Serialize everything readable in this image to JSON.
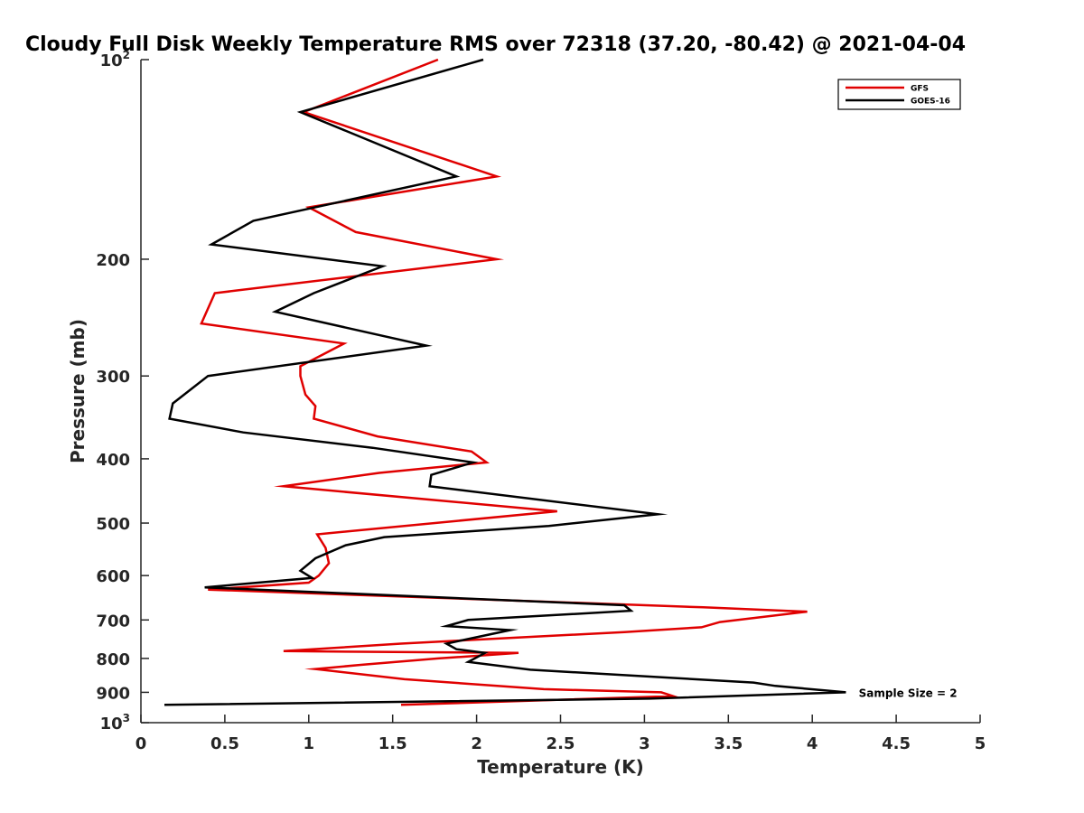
{
  "chart_data": {
    "type": "line",
    "title": "Cloudy Full Disk Weekly Temperature RMS over 72318 (37.20, -80.42) @ 2021-04-04",
    "xlabel": "Temperature (K)",
    "ylabel": "Pressure (mb)",
    "xlim": [
      0,
      5
    ],
    "ylim": [
      100,
      1000
    ],
    "y_scale": "log",
    "y_reversed": true,
    "grid": false,
    "legend_position": "top-right",
    "x_ticks": [
      "0",
      "0.5",
      "1",
      "1.5",
      "2",
      "2.5",
      "3",
      "3.5",
      "4",
      "4.5",
      "5"
    ],
    "x_tick_values": [
      0,
      0.5,
      1,
      1.5,
      2,
      2.5,
      3,
      3.5,
      4,
      4.5,
      5
    ],
    "y_ticks": [
      {
        "value": 100,
        "base": "10",
        "exp": "2"
      },
      {
        "value": 200,
        "label": "200"
      },
      {
        "value": 300,
        "label": "300"
      },
      {
        "value": 400,
        "label": "400"
      },
      {
        "value": 500,
        "label": "500"
      },
      {
        "value": 600,
        "label": "600"
      },
      {
        "value": 700,
        "label": "700"
      },
      {
        "value": 800,
        "label": "800"
      },
      {
        "value": 900,
        "label": "900"
      },
      {
        "value": 1000,
        "base": "10",
        "exp": "3"
      }
    ],
    "annotation": {
      "text": "Sample Size = 2",
      "x": 4.25,
      "y": 900
    },
    "series": [
      {
        "name": "GFS",
        "color": "#e00000",
        "points": [
          [
            1.77,
            100
          ],
          [
            0.97,
            120
          ],
          [
            2.12,
            150
          ],
          [
            1.0,
            167
          ],
          [
            1.28,
            182
          ],
          [
            2.12,
            200
          ],
          [
            0.44,
            225
          ],
          [
            0.36,
            250
          ],
          [
            1.21,
            268
          ],
          [
            0.95,
            290
          ],
          [
            0.95,
            300
          ],
          [
            0.98,
            320
          ],
          [
            1.04,
            333
          ],
          [
            1.03,
            348
          ],
          [
            1.41,
            370
          ],
          [
            1.97,
            390
          ],
          [
            2.06,
            405
          ],
          [
            1.42,
            420
          ],
          [
            0.85,
            440
          ],
          [
            2.48,
            480
          ],
          [
            1.05,
            520
          ],
          [
            1.1,
            545
          ],
          [
            1.12,
            575
          ],
          [
            1.06,
            600
          ],
          [
            1.0,
            615
          ],
          [
            0.4,
            630
          ],
          [
            3.35,
            670
          ],
          [
            3.97,
            680
          ],
          [
            3.45,
            705
          ],
          [
            3.34,
            718
          ],
          [
            2.88,
            730
          ],
          [
            1.55,
            760
          ],
          [
            0.85,
            780
          ],
          [
            2.25,
            785
          ],
          [
            1.77,
            800
          ],
          [
            1.31,
            818
          ],
          [
            1.04,
            830
          ],
          [
            1.57,
            860
          ],
          [
            2.4,
            890
          ],
          [
            3.1,
            900
          ],
          [
            3.17,
            912
          ],
          [
            1.55,
            940
          ]
        ]
      },
      {
        "name": "GOES-16",
        "color": "#000000",
        "points": [
          [
            2.04,
            100
          ],
          [
            0.95,
            120
          ],
          [
            1.88,
            150
          ],
          [
            0.67,
            175
          ],
          [
            0.42,
            190
          ],
          [
            1.44,
            205
          ],
          [
            1.03,
            225
          ],
          [
            0.8,
            240
          ],
          [
            1.7,
            270
          ],
          [
            0.4,
            300
          ],
          [
            0.19,
            330
          ],
          [
            0.17,
            348
          ],
          [
            0.61,
            365
          ],
          [
            1.38,
            385
          ],
          [
            1.98,
            405
          ],
          [
            1.73,
            423
          ],
          [
            1.72,
            440
          ],
          [
            3.08,
            485
          ],
          [
            2.43,
            505
          ],
          [
            1.45,
            525
          ],
          [
            1.22,
            540
          ],
          [
            1.04,
            565
          ],
          [
            0.95,
            590
          ],
          [
            1.02,
            605
          ],
          [
            0.38,
            625
          ],
          [
            2.88,
            665
          ],
          [
            2.92,
            678
          ],
          [
            1.95,
            700
          ],
          [
            1.82,
            715
          ],
          [
            2.2,
            725
          ],
          [
            1.82,
            760
          ],
          [
            1.88,
            775
          ],
          [
            2.05,
            785
          ],
          [
            1.95,
            810
          ],
          [
            2.32,
            832
          ],
          [
            3.65,
            870
          ],
          [
            3.78,
            880
          ],
          [
            4.2,
            900
          ],
          [
            3.03,
            920
          ],
          [
            0.14,
            940
          ]
        ]
      }
    ]
  }
}
